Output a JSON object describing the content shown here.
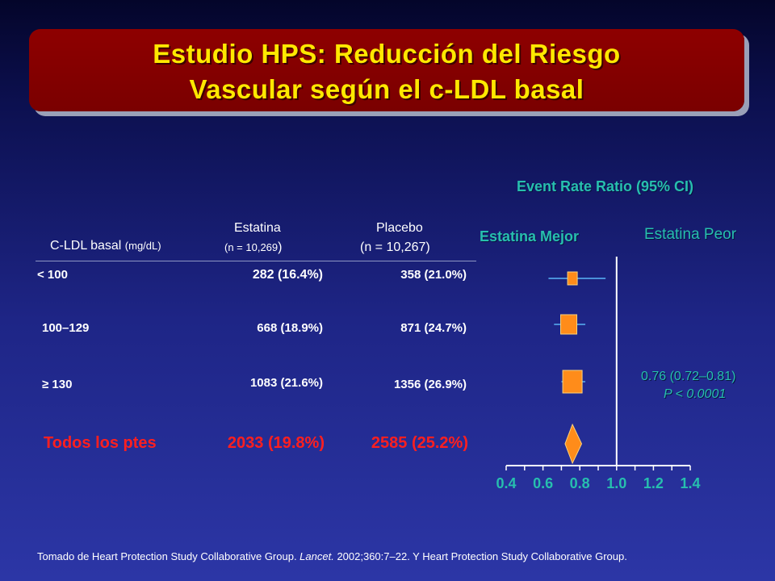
{
  "title": {
    "part1": "Estudio HPS:",
    "part2": " Reducción del Riesgo",
    "line2": "Vascular según el c-LDL basal"
  },
  "table": {
    "col_label_header": "C-LDL basal",
    "col_label_unit": "(mg/dL)",
    "estatina_header": "Estatina",
    "estatina_n": "(n = 10,269",
    "estatina_n_close": ")",
    "placebo_header": "Placebo",
    "placebo_n": "(n = 10,267)",
    "rows": [
      {
        "label": "< 100",
        "estatina": "282 (16.4%)",
        "placebo": "358 (21.0%)"
      },
      {
        "label": "100–129",
        "estatina": "668 (18.9%)",
        "placebo": "871 (24.7%)"
      },
      {
        "label": "≥ 130",
        "estatina": "1083 (21.6%)",
        "placebo": "1356 (26.9%)"
      }
    ],
    "total": {
      "label": "Todos los ptes",
      "estatina": "2033 (19.8%)",
      "placebo": "2585 (25.2%)"
    }
  },
  "chart_data": {
    "type": "forest",
    "title": "Event Rate Ratio (95% CI)",
    "left_label": "Estatina Mejor",
    "right_label": "Estatina Peor",
    "xlim": [
      0.4,
      1.4
    ],
    "x_ticks": [
      "0.4",
      "0.6",
      "0.8",
      "1.0",
      "1.2",
      "1.4"
    ],
    "reference_line": 1.0,
    "rows": [
      {
        "estimate": 0.76,
        "ci": [
          0.63,
          0.94
        ]
      },
      {
        "estimate": 0.74,
        "ci": [
          0.66,
          0.83
        ]
      },
      {
        "estimate": 0.76,
        "ci": [
          0.7,
          0.83
        ]
      }
    ],
    "overall": {
      "estimate": 0.76,
      "ci": [
        0.72,
        0.81
      ]
    },
    "annotation_line1": "0.76 (0.72–0.81)",
    "annotation_line2": "P < 0.0001",
    "colors": {
      "box": "#ff8c1a",
      "box_edge": "#ffd27a",
      "ci_line": "#4a90d9",
      "axis": "#ffffff",
      "tick_text": "#27bfae"
    }
  },
  "footnote": {
    "prefix": "Tomado de Heart Protection Study Collaborative Group. ",
    "journal": "Lancet.",
    "suffix": " 2002;360:7–22. Y Heart Protection Study Collaborative Group."
  }
}
